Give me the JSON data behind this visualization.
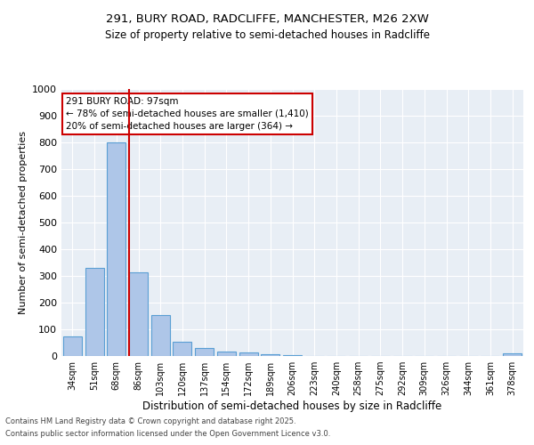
{
  "title_line1": "291, BURY ROAD, RADCLIFFE, MANCHESTER, M26 2XW",
  "title_line2": "Size of property relative to semi-detached houses in Radcliffe",
  "xlabel": "Distribution of semi-detached houses by size in Radcliffe",
  "ylabel": "Number of semi-detached properties",
  "categories": [
    "34sqm",
    "51sqm",
    "68sqm",
    "86sqm",
    "103sqm",
    "120sqm",
    "137sqm",
    "154sqm",
    "172sqm",
    "189sqm",
    "206sqm",
    "223sqm",
    "240sqm",
    "258sqm",
    "275sqm",
    "292sqm",
    "309sqm",
    "326sqm",
    "344sqm",
    "361sqm",
    "378sqm"
  ],
  "values": [
    75,
    330,
    800,
    315,
    155,
    55,
    30,
    18,
    15,
    8,
    5,
    0,
    0,
    0,
    0,
    0,
    0,
    0,
    0,
    0,
    10
  ],
  "bar_color": "#aec6e8",
  "bar_edge_color": "#5a9fd4",
  "vline_color": "#cc0000",
  "annotation_title": "291 BURY ROAD: 97sqm",
  "annotation_line1": "← 78% of semi-detached houses are smaller (1,410)",
  "annotation_line2": "20% of semi-detached houses are larger (364) →",
  "annotation_box_color": "#cc0000",
  "ylim": [
    0,
    1000
  ],
  "yticks": [
    0,
    100,
    200,
    300,
    400,
    500,
    600,
    700,
    800,
    900,
    1000
  ],
  "footer_line1": "Contains HM Land Registry data © Crown copyright and database right 2025.",
  "footer_line2": "Contains public sector information licensed under the Open Government Licence v3.0.",
  "plot_bg_color": "#e8eef5"
}
